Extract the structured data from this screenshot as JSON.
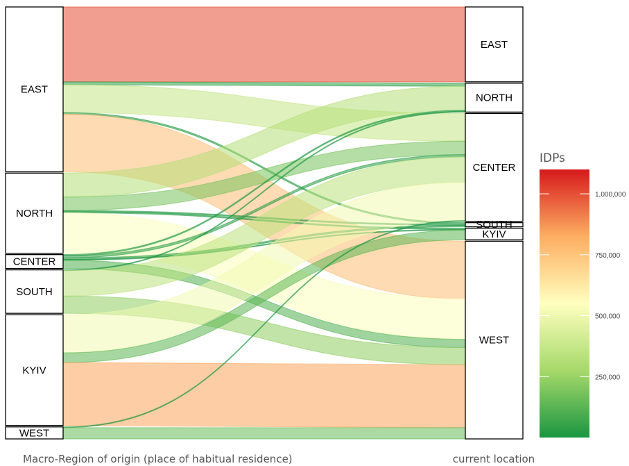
{
  "chart_data": {
    "type": "alluvial",
    "axis_left_label": "Macro-Region of origin (place of habitual residence)",
    "axis_right_label": "current location",
    "origin_regions": [
      "EAST",
      "NORTH",
      "CENTER",
      "SOUTH",
      "KYIV",
      "WEST"
    ],
    "current_regions": [
      "EAST",
      "NORTH",
      "CENTER",
      "SOUTH",
      "KYIV",
      "WEST"
    ],
    "flows": [
      {
        "from": "EAST",
        "to": "EAST",
        "value": 1000000
      },
      {
        "from": "EAST",
        "to": "NORTH",
        "value": 40000
      },
      {
        "from": "EAST",
        "to": "CENTER",
        "value": 370000
      },
      {
        "from": "EAST",
        "to": "SOUTH",
        "value": 20000
      },
      {
        "from": "EAST",
        "to": "WEST",
        "value": 770000
      },
      {
        "from": "NORTH",
        "to": "NORTH",
        "value": 320000
      },
      {
        "from": "NORTH",
        "to": "CENTER",
        "value": 180000
      },
      {
        "from": "NORTH",
        "to": "SOUTH",
        "value": 15000
      },
      {
        "from": "NORTH",
        "to": "KYIV",
        "value": 15000
      },
      {
        "from": "NORTH",
        "to": "WEST",
        "value": 540000
      },
      {
        "from": "CENTER",
        "to": "NORTH",
        "value": 15000
      },
      {
        "from": "CENTER",
        "to": "CENTER",
        "value": 30000
      },
      {
        "from": "CENTER",
        "to": "SOUTH",
        "value": 20000
      },
      {
        "from": "CENTER",
        "to": "KYIV",
        "value": 10000
      },
      {
        "from": "CENTER",
        "to": "WEST",
        "value": 110000
      },
      {
        "from": "SOUTH",
        "to": "NORTH",
        "value": 10000
      },
      {
        "from": "SOUTH",
        "to": "CENTER",
        "value": 340000
      },
      {
        "from": "SOUTH",
        "to": "WEST",
        "value": 230000
      },
      {
        "from": "KYIV",
        "to": "CENTER",
        "value": 510000
      },
      {
        "from": "KYIV",
        "to": "KYIV",
        "value": 130000
      },
      {
        "from": "KYIV",
        "to": "WEST",
        "value": 840000
      },
      {
        "from": "WEST",
        "to": "CENTER",
        "value": 10000
      },
      {
        "from": "WEST",
        "to": "WEST",
        "value": 150000
      }
    ],
    "legend": {
      "title": "IDPs",
      "ticks": [
        "250,000",
        "500,000",
        "750,000",
        "1,000,000"
      ],
      "tick_values": [
        250000,
        500000,
        750000,
        1000000
      ],
      "min": 0,
      "max": 1100000,
      "colors": [
        "#1a9641",
        "#a6d96a",
        "#ffffbf",
        "#fdae61",
        "#d7191c"
      ]
    }
  }
}
